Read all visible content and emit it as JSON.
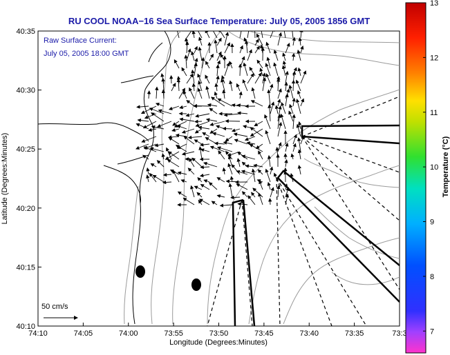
{
  "chart_data": {
    "type": "map",
    "title": "RU COOL  NOAA−16  Sea Surface Temperature:  July 05, 2005 1856 GMT",
    "xlabel": "Longitude (Degrees:Minutes)",
    "ylabel": "Latitude (Degrees:Minutes)",
    "x_ticks": [
      "74:10",
      "74:05",
      "74:00",
      "73:55",
      "73:50",
      "73:45",
      "73:40",
      "73:35",
      "73:3"
    ],
    "y_ticks": [
      "40:10",
      "40:15",
      "40:20",
      "40:25",
      "40:30",
      "40:35"
    ],
    "annotation_line1": "Raw Surface Current:",
    "annotation_line2": "July 05, 2005 18:00 GMT",
    "scale_label": "50 cm/s",
    "colorbar": {
      "label": "Temperature (°C)",
      "min": 6.6,
      "max": 13,
      "ticks": [
        "7",
        "8",
        "9",
        "10",
        "11",
        "12",
        "13"
      ],
      "colormap": "jet"
    },
    "land_color": "#ffffff",
    "coast_color": "#000000",
    "bathymetry_color": "#9a9a9a",
    "vector_color": "#000000"
  }
}
